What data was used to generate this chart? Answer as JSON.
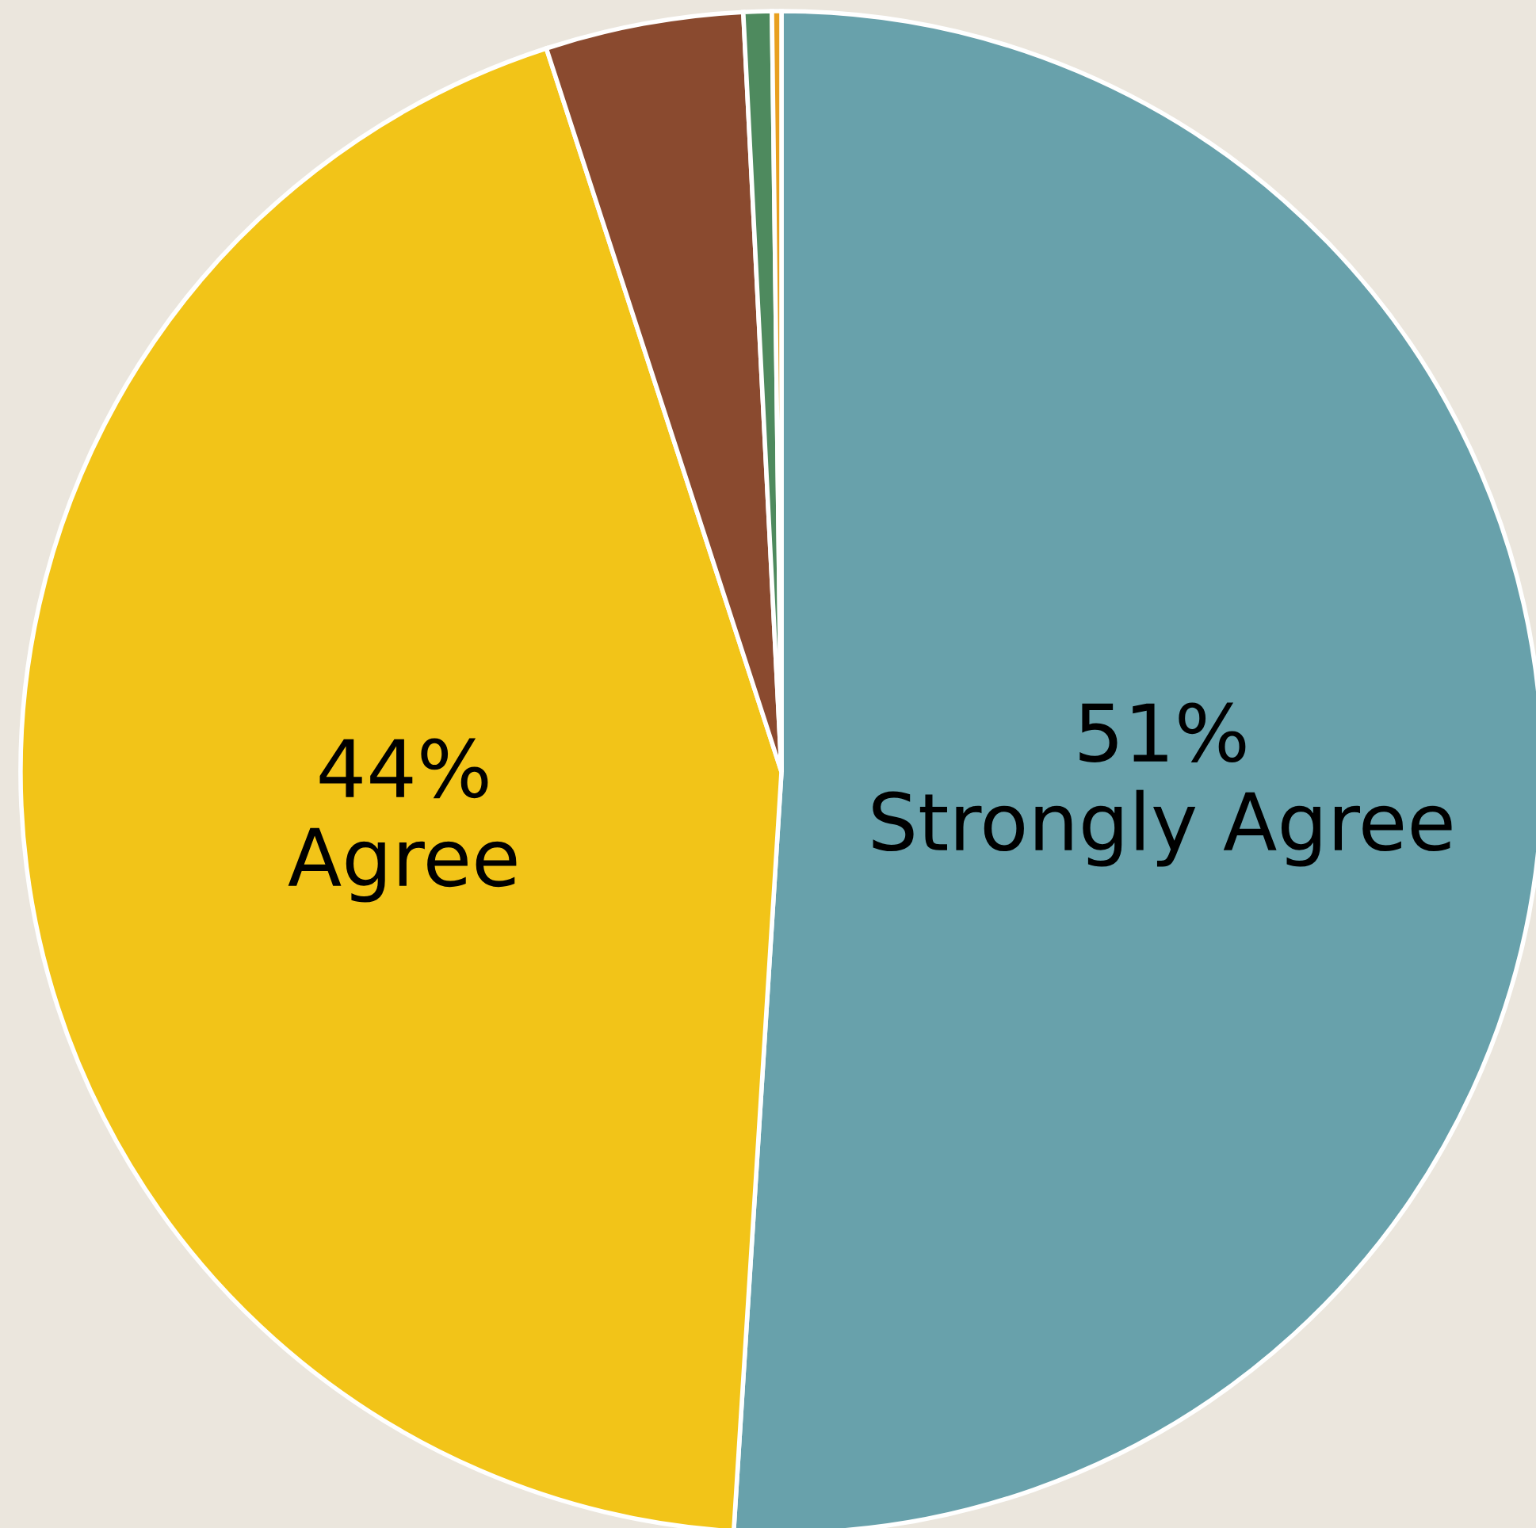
{
  "chart_data": {
    "type": "pie",
    "categories": [
      "Strongly Agree",
      "Agree",
      null,
      null,
      null
    ],
    "values": [
      51,
      44,
      4.2,
      0.6,
      0.2
    ],
    "value_labels": [
      "51%",
      "44%",
      null,
      null,
      null
    ],
    "colors": [
      "#68a1ab",
      "#f2c418",
      "#8a4a2f",
      "#4e8a5e",
      "#e8a020"
    ],
    "legend": false
  }
}
